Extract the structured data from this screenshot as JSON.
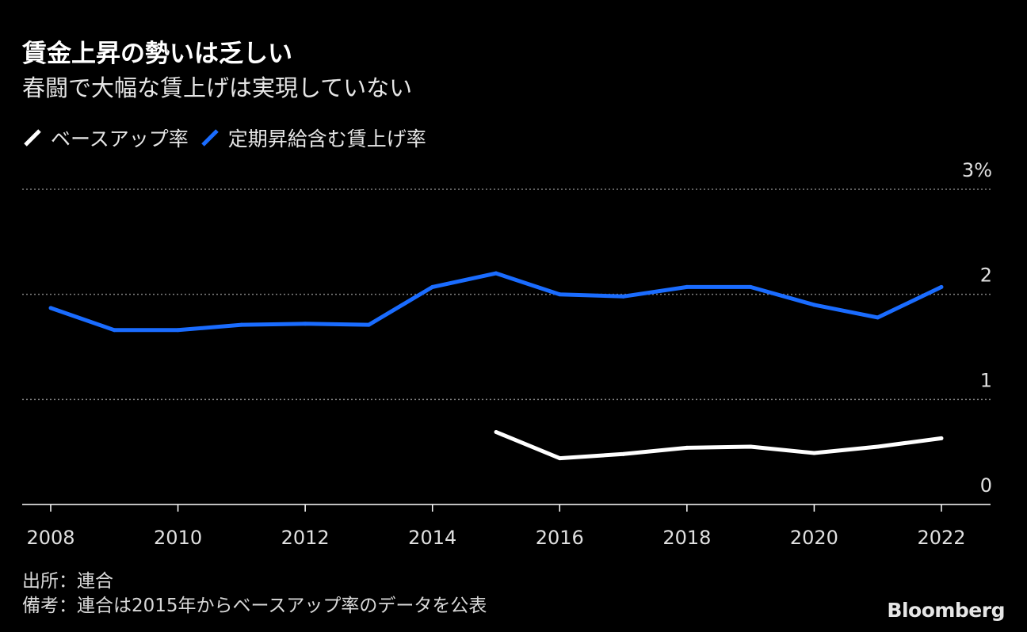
{
  "header": {
    "title": "賃金上昇の勢いは乏しい",
    "subtitle": "春闘で大幅な賃上げは実現していない"
  },
  "legend": {
    "base_up": "ベースアップ率",
    "total": "定期昇給含む賃上げ率"
  },
  "colors": {
    "base_up": "#ffffff",
    "total": "#1a6cff",
    "grid": "#808080",
    "axis": "#ffffff",
    "tick_text": "#e0e0e0"
  },
  "chart_data": {
    "type": "line",
    "title": "賃金上昇の勢いは乏しい",
    "subtitle": "春闘で大幅な賃上げは実現していない",
    "xlabel": "",
    "ylabel": "",
    "xlim": [
      2008,
      2022
    ],
    "ylim": [
      0,
      3
    ],
    "x_ticks": [
      "2008",
      "2010",
      "2012",
      "2014",
      "2016",
      "2018",
      "2020",
      "2022"
    ],
    "y_ticks": [
      "0",
      "1",
      "2",
      "3%"
    ],
    "grid": true,
    "series": [
      {
        "name": "定期昇給含む賃上げ率",
        "color": "#1a6cff",
        "x": [
          2008,
          2009,
          2010,
          2011,
          2012,
          2013,
          2014,
          2015,
          2016,
          2017,
          2018,
          2019,
          2020,
          2021,
          2022
        ],
        "values": [
          1.87,
          1.66,
          1.66,
          1.71,
          1.72,
          1.71,
          2.07,
          2.2,
          2.0,
          1.98,
          2.07,
          2.07,
          1.9,
          1.78,
          2.07
        ]
      },
      {
        "name": "ベースアップ率",
        "color": "#ffffff",
        "x": [
          2015,
          2016,
          2017,
          2018,
          2019,
          2020,
          2021,
          2022
        ],
        "values": [
          0.69,
          0.44,
          0.48,
          0.54,
          0.55,
          0.49,
          0.55,
          0.63
        ]
      }
    ]
  },
  "footer": {
    "source": "出所：連合",
    "note": "備考：連合は2015年からベースアップ率のデータを公表",
    "brand": "Bloomberg"
  }
}
